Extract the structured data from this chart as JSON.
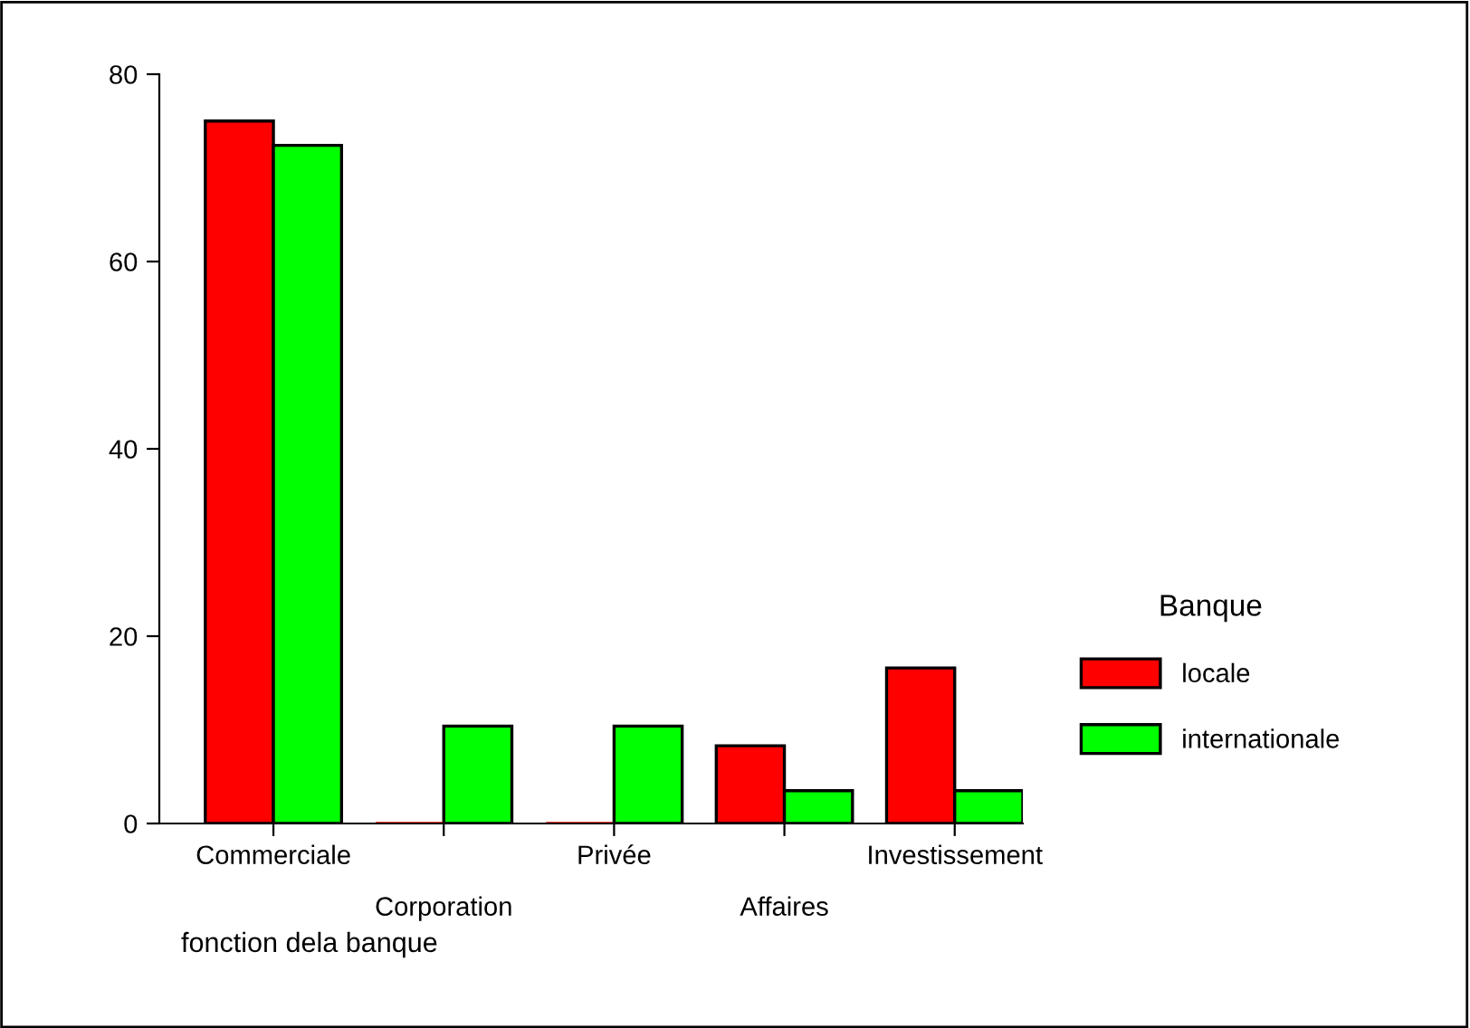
{
  "chart_data": {
    "type": "bar",
    "xlabel": "fonction dela banque",
    "legend_title": "Banque",
    "legend": "right",
    "categories": [
      "Commerciale",
      "Corporation",
      "Privée",
      "Affaires",
      "Investissement"
    ],
    "series": [
      {
        "name": "locale",
        "color": "#ff0000",
        "values": [
          75.0,
          0,
          0,
          8.3,
          16.6
        ]
      },
      {
        "name": "internationale",
        "color": "#00ff00",
        "values": [
          72.4,
          10.4,
          10.4,
          3.5,
          3.5
        ]
      }
    ],
    "ylim": [
      0,
      80
    ],
    "yticks": [
      0,
      20,
      40,
      60,
      80
    ],
    "grid": false
  }
}
